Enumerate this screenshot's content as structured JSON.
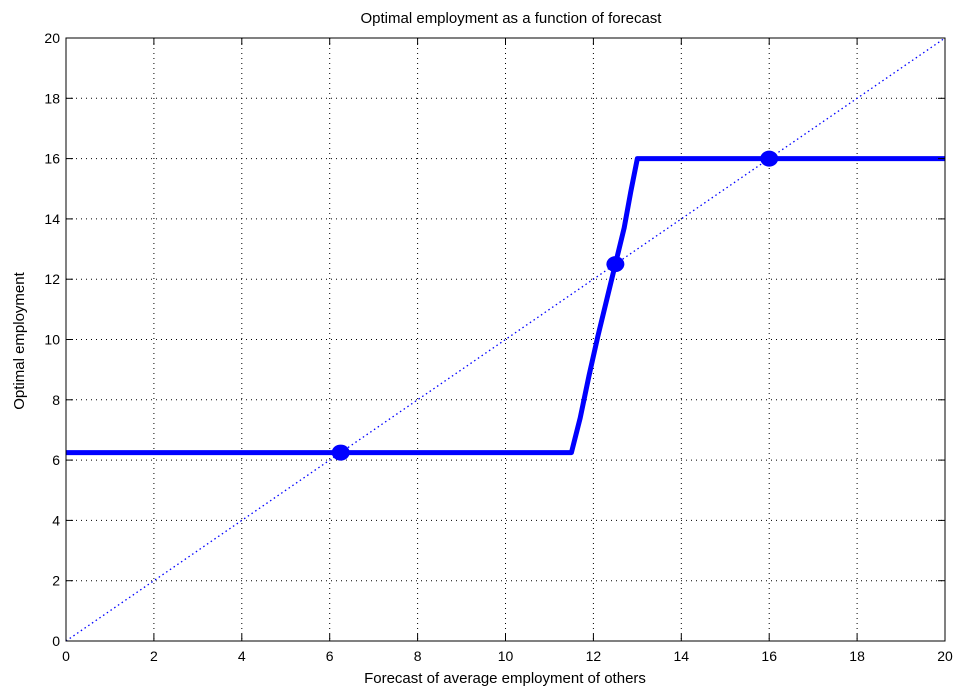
{
  "chart_data": {
    "type": "line",
    "title": "Optimal employment as a function of forecast",
    "xlabel": "Forecast of average employment of others",
    "ylabel": "Optimal employment",
    "xlim": [
      0,
      20
    ],
    "ylim": [
      0,
      20
    ],
    "xticks": [
      0,
      2,
      4,
      6,
      8,
      10,
      12,
      14,
      16,
      18,
      20
    ],
    "yticks": [
      0,
      2,
      4,
      6,
      8,
      10,
      12,
      14,
      16,
      18,
      20
    ],
    "grid": true,
    "series": [
      {
        "style": "solid-thick",
        "color": "#0000ff",
        "x": [
          0,
          11.5,
          11.7,
          11.9,
          12.1,
          12.3,
          12.5,
          12.7,
          12.85,
          13,
          20
        ],
        "y": [
          6.25,
          6.25,
          7.4,
          8.8,
          10.1,
          11.3,
          12.5,
          13.7,
          14.9,
          16,
          16
        ]
      },
      {
        "style": "dotted",
        "color": "#0000ff",
        "x": [
          0,
          20
        ],
        "y": [
          0,
          20
        ]
      }
    ],
    "points": [
      {
        "x": 6.25,
        "y": 6.25
      },
      {
        "x": 12.5,
        "y": 12.5
      },
      {
        "x": 16,
        "y": 16
      }
    ]
  }
}
